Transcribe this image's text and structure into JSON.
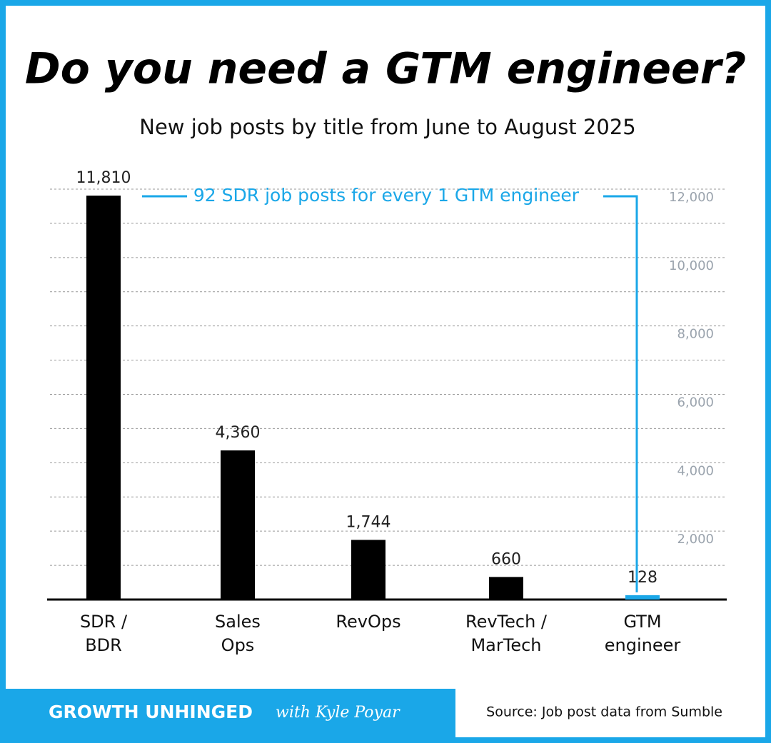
{
  "chart_data": {
    "type": "bar",
    "title": "Do you need a GTM engineer?",
    "subtitle": "New job posts by title from June to August 2025",
    "categories": [
      [
        "SDR /",
        "BDR"
      ],
      [
        "Sales",
        "Ops"
      ],
      [
        "RevOps"
      ],
      [
        "RevTech /",
        "MarTech"
      ],
      [
        "GTM",
        "engineer"
      ]
    ],
    "values": [
      11810,
      4360,
      1744,
      660,
      128
    ],
    "value_labels": [
      "11,810",
      "4,360",
      "1,744",
      "660",
      "128"
    ],
    "colors": [
      "#000000",
      "#000000",
      "#000000",
      "#000000",
      "#1aa7e8"
    ],
    "ylim": [
      0,
      12000
    ],
    "yticks": [
      {
        "value": 2000,
        "label": "2,000"
      },
      {
        "value": 4000,
        "label": "4,000"
      },
      {
        "value": 6000,
        "label": "6,000"
      },
      {
        "value": 8000,
        "label": "8,000"
      },
      {
        "value": 10000,
        "label": "10,000"
      },
      {
        "value": 12000,
        "label": "12,000"
      }
    ],
    "minor_grid": [
      1000,
      3000,
      5000,
      7000,
      9000,
      11000
    ],
    "grid": true,
    "y_axis_side": "right",
    "annotation": "92 SDR job posts for every 1 GTM engineer",
    "annotation_color": "#1aa7e8"
  },
  "footer": {
    "brand": "GROWTH UNHINGED",
    "byline": "with Kyle Poyar",
    "source": "Source: Job post data from Sumble"
  }
}
